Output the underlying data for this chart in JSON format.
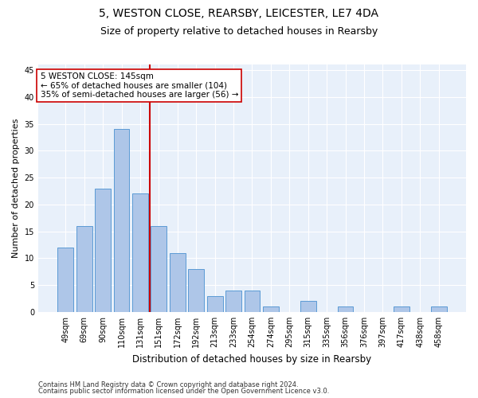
{
  "title1": "5, WESTON CLOSE, REARSBY, LEICESTER, LE7 4DA",
  "title2": "Size of property relative to detached houses in Rearsby",
  "xlabel": "Distribution of detached houses by size in Rearsby",
  "ylabel": "Number of detached properties",
  "footnote1": "Contains HM Land Registry data © Crown copyright and database right 2024.",
  "footnote2": "Contains public sector information licensed under the Open Government Licence v3.0.",
  "categories": [
    "49sqm",
    "69sqm",
    "90sqm",
    "110sqm",
    "131sqm",
    "151sqm",
    "172sqm",
    "192sqm",
    "213sqm",
    "233sqm",
    "254sqm",
    "274sqm",
    "295sqm",
    "315sqm",
    "335sqm",
    "356sqm",
    "376sqm",
    "397sqm",
    "417sqm",
    "438sqm",
    "458sqm"
  ],
  "values": [
    12,
    16,
    23,
    34,
    22,
    16,
    11,
    8,
    3,
    4,
    4,
    1,
    0,
    2,
    0,
    1,
    0,
    0,
    1,
    0,
    1
  ],
  "bar_color": "#aec6e8",
  "bar_edge_color": "#5b9bd5",
  "vline_x": 4.5,
  "vline_color": "#cc0000",
  "annotation_line1": "5 WESTON CLOSE: 145sqm",
  "annotation_line2": "← 65% of detached houses are smaller (104)",
  "annotation_line3": "35% of semi-detached houses are larger (56) →",
  "annotation_box_color": "#ffffff",
  "annotation_box_edge": "#cc0000",
  "ylim": [
    0,
    46
  ],
  "yticks": [
    0,
    5,
    10,
    15,
    20,
    25,
    30,
    35,
    40,
    45
  ],
  "bg_color": "#e8f0fa",
  "grid_color": "#ffffff",
  "title1_fontsize": 10,
  "title2_fontsize": 9,
  "xlabel_fontsize": 8.5,
  "ylabel_fontsize": 8,
  "tick_fontsize": 7,
  "annot_fontsize": 7.5,
  "footnote_fontsize": 6
}
